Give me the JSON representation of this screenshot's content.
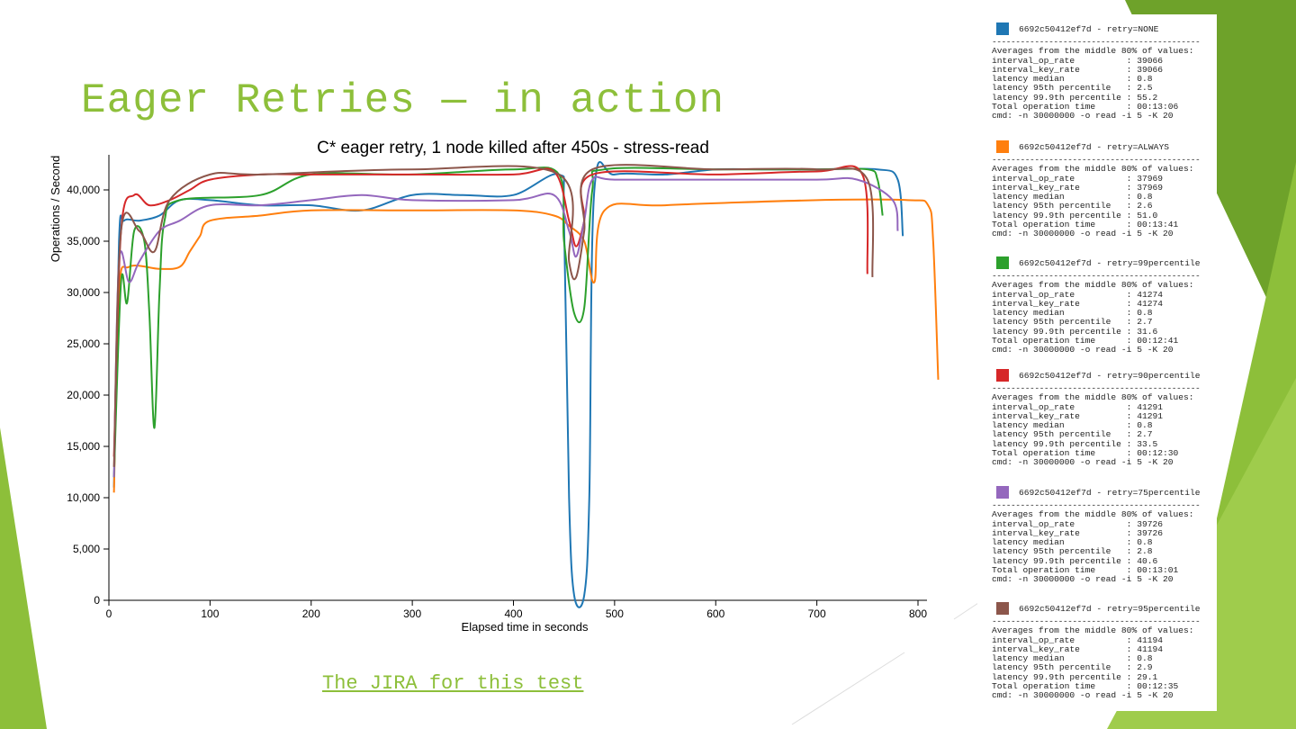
{
  "slide": {
    "title": "Eager Retries — in action",
    "link_text": "The JIRA for this test"
  },
  "chart_data": {
    "type": "line",
    "title": "C* eager retry, 1 node killed after 450s - stress-read",
    "xlabel": "Elapsed time in seconds",
    "ylabel": "Operations / Second",
    "xlim": [
      0,
      830
    ],
    "ylim": [
      0,
      44000
    ],
    "xticks": [
      "0",
      "100",
      "200",
      "300",
      "400",
      "500",
      "600",
      "700",
      "800"
    ],
    "xtick_values": [
      0,
      100,
      200,
      300,
      400,
      500,
      600,
      700,
      800
    ],
    "yticks": [
      "0",
      "5,000",
      "10,000",
      "15,000",
      "20,000",
      "25,000",
      "30,000",
      "35,000",
      "40,000"
    ],
    "ytick_values": [
      0,
      5000,
      10000,
      15000,
      20000,
      25000,
      30000,
      35000,
      40000
    ],
    "grid": false,
    "series": [
      {
        "name": "retry=NONE",
        "color": "#1f77b4",
        "points": [
          [
            5,
            11000
          ],
          [
            10,
            35000
          ],
          [
            15,
            37000
          ],
          [
            30,
            37000
          ],
          [
            50,
            37500
          ],
          [
            70,
            39000
          ],
          [
            100,
            39000
          ],
          [
            150,
            38500
          ],
          [
            200,
            38500
          ],
          [
            250,
            38000
          ],
          [
            300,
            39500
          ],
          [
            350,
            39500
          ],
          [
            400,
            39500
          ],
          [
            445,
            41500
          ],
          [
            450,
            37000
          ],
          [
            455,
            10000
          ],
          [
            460,
            500
          ],
          [
            470,
            500
          ],
          [
            475,
            10000
          ],
          [
            480,
            40000
          ],
          [
            500,
            41500
          ],
          [
            550,
            41500
          ],
          [
            600,
            42000
          ],
          [
            650,
            42000
          ],
          [
            700,
            42000
          ],
          [
            760,
            42000
          ],
          [
            780,
            41000
          ],
          [
            785,
            35500
          ]
        ]
      },
      {
        "name": "retry=ALWAYS",
        "color": "#ff7f0e",
        "points": [
          [
            5,
            10500
          ],
          [
            10,
            30000
          ],
          [
            20,
            32500
          ],
          [
            50,
            32300
          ],
          [
            70,
            32500
          ],
          [
            80,
            34000
          ],
          [
            90,
            35500
          ],
          [
            100,
            37000
          ],
          [
            150,
            37500
          ],
          [
            200,
            38000
          ],
          [
            300,
            38000
          ],
          [
            400,
            38000
          ],
          [
            440,
            37500
          ],
          [
            455,
            36500
          ],
          [
            470,
            35000
          ],
          [
            480,
            31000
          ],
          [
            490,
            38000
          ],
          [
            550,
            38500
          ],
          [
            700,
            39000
          ],
          [
            790,
            39000
          ],
          [
            810,
            38500
          ],
          [
            815,
            35000
          ],
          [
            820,
            21500
          ]
        ]
      },
      {
        "name": "retry=99percentile",
        "color": "#2ca02c",
        "points": [
          [
            5,
            12000
          ],
          [
            12,
            31000
          ],
          [
            18,
            29000
          ],
          [
            25,
            36000
          ],
          [
            35,
            35000
          ],
          [
            40,
            28000
          ],
          [
            45,
            16800
          ],
          [
            50,
            30000
          ],
          [
            55,
            37000
          ],
          [
            70,
            39000
          ],
          [
            150,
            39500
          ],
          [
            200,
            41500
          ],
          [
            300,
            41500
          ],
          [
            400,
            42000
          ],
          [
            445,
            41500
          ],
          [
            450,
            35000
          ],
          [
            460,
            28000
          ],
          [
            470,
            28500
          ],
          [
            478,
            40000
          ],
          [
            490,
            42000
          ],
          [
            600,
            42000
          ],
          [
            700,
            42000
          ],
          [
            750,
            42000
          ],
          [
            760,
            41000
          ],
          [
            765,
            37500
          ]
        ]
      },
      {
        "name": "retry=90percentile",
        "color": "#d62728",
        "points": [
          [
            5,
            14000
          ],
          [
            12,
            36000
          ],
          [
            25,
            39500
          ],
          [
            40,
            38500
          ],
          [
            60,
            39000
          ],
          [
            80,
            40000
          ],
          [
            100,
            41000
          ],
          [
            150,
            41500
          ],
          [
            200,
            41500
          ],
          [
            300,
            41500
          ],
          [
            400,
            41500
          ],
          [
            440,
            41800
          ],
          [
            455,
            37000
          ],
          [
            462,
            34500
          ],
          [
            470,
            37000
          ],
          [
            478,
            41500
          ],
          [
            600,
            41500
          ],
          [
            700,
            41800
          ],
          [
            745,
            41500
          ],
          [
            750,
            31800
          ]
        ]
      },
      {
        "name": "retry=75percentile",
        "color": "#9467bd",
        "points": [
          [
            5,
            12000
          ],
          [
            10,
            33000
          ],
          [
            20,
            31000
          ],
          [
            30,
            33000
          ],
          [
            50,
            36000
          ],
          [
            70,
            37000
          ],
          [
            100,
            38500
          ],
          [
            150,
            38500
          ],
          [
            200,
            39000
          ],
          [
            250,
            39500
          ],
          [
            300,
            39000
          ],
          [
            400,
            39000
          ],
          [
            440,
            39500
          ],
          [
            455,
            36000
          ],
          [
            462,
            33500
          ],
          [
            470,
            37000
          ],
          [
            478,
            41000
          ],
          [
            500,
            41000
          ],
          [
            600,
            41000
          ],
          [
            700,
            41000
          ],
          [
            740,
            41000
          ],
          [
            775,
            39000
          ],
          [
            780,
            36000
          ]
        ]
      },
      {
        "name": "retry=95percentile",
        "color": "#8c564b",
        "points": [
          [
            5,
            13000
          ],
          [
            12,
            36000
          ],
          [
            30,
            36000
          ],
          [
            45,
            34000
          ],
          [
            60,
            39000
          ],
          [
            100,
            41500
          ],
          [
            150,
            41500
          ],
          [
            300,
            42000
          ],
          [
            445,
            41500
          ],
          [
            455,
            33000
          ],
          [
            462,
            31500
          ],
          [
            470,
            36000
          ],
          [
            478,
            42000
          ],
          [
            600,
            42000
          ],
          [
            700,
            42000
          ],
          [
            750,
            41000
          ],
          [
            755,
            31500
          ]
        ]
      }
    ]
  },
  "legend": [
    {
      "color": "#1f77b4",
      "header": "6692c50412ef7d - retry=NONE",
      "lines": [
        "Averages from the middle 80% of values:",
        "interval_op_rate          : 39066",
        "interval_key_rate         : 39066",
        "latency median            : 0.8",
        "latency 95th percentile   : 2.5",
        "latency 99.9th percentile : 55.2",
        "Total operation time      : 00:13:06",
        "cmd: -n 30000000 -o read -i 5 -K 20"
      ]
    },
    {
      "color": "#ff7f0e",
      "header": "6692c50412ef7d - retry=ALWAYS",
      "lines": [
        "Averages from the middle 80% of values:",
        "interval_op_rate          : 37969",
        "interval_key_rate         : 37969",
        "latency median            : 0.8",
        "latency 95th percentile   : 2.6",
        "latency 99.9th percentile : 51.0",
        "Total operation time      : 00:13:41",
        "cmd: -n 30000000 -o read -i 5 -K 20"
      ]
    },
    {
      "color": "#2ca02c",
      "header": "6692c50412ef7d - retry=99percentile",
      "lines": [
        "Averages from the middle 80% of values:",
        "interval_op_rate          : 41274",
        "interval_key_rate         : 41274",
        "latency median            : 0.8",
        "latency 95th percentile   : 2.7",
        "latency 99.9th percentile : 31.6",
        "Total operation time      : 00:12:41",
        "cmd: -n 30000000 -o read -i 5 -K 20"
      ]
    },
    {
      "color": "#d62728",
      "header": "6692c50412ef7d - retry=90percentile",
      "lines": [
        "Averages from the middle 80% of values:",
        "interval_op_rate          : 41291",
        "interval_key_rate         : 41291",
        "latency median            : 0.8",
        "latency 95th percentile   : 2.7",
        "latency 99.9th percentile : 33.5",
        "Total operation time      : 00:12:30",
        "cmd: -n 30000000 -o read -i 5 -K 20"
      ]
    },
    {
      "color": "#9467bd",
      "header": "6692c50412ef7d - retry=75percentile",
      "lines": [
        "Averages from the middle 80% of values:",
        "interval_op_rate          : 39726",
        "interval_key_rate         : 39726",
        "latency median            : 0.8",
        "latency 95th percentile   : 2.8",
        "latency 99.9th percentile : 40.6",
        "Total operation time      : 00:13:01",
        "cmd: -n 30000000 -o read -i 5 -K 20"
      ]
    },
    {
      "color": "#8c564b",
      "header": "6692c50412ef7d - retry=95percentile",
      "lines": [
        "Averages from the middle 80% of values:",
        "interval_op_rate          : 41194",
        "interval_key_rate         : 41194",
        "latency median            : 0.8",
        "latency 95th percentile   : 2.9",
        "latency 99.9th percentile : 29.1",
        "Total operation time      : 00:12:35",
        "cmd: -n 30000000 -o read -i 5 -K 20"
      ]
    }
  ]
}
